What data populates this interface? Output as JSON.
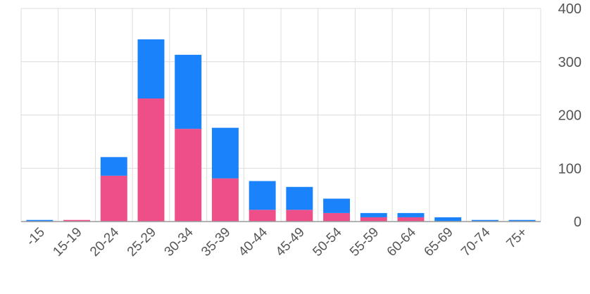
{
  "chart_data": {
    "type": "bar",
    "stacked": true,
    "categories": [
      "-15",
      "15-19",
      "20-24",
      "25-29",
      "30-34",
      "35-39",
      "40-44",
      "45-49",
      "50-54",
      "55-59",
      "60-64",
      "65-69",
      "70-74",
      "75+"
    ],
    "series": [
      {
        "color": "#ee4f88",
        "values": [
          0,
          3,
          86,
          231,
          174,
          81,
          22,
          22,
          16,
          8,
          8,
          0,
          0,
          0
        ]
      },
      {
        "color": "#1a82fb",
        "values": [
          3,
          0,
          35,
          111,
          139,
          95,
          54,
          43,
          27,
          8,
          8,
          8,
          3,
          3
        ]
      }
    ],
    "ylim": [
      0,
      400
    ],
    "yticks": [
      0,
      100,
      200,
      300,
      400
    ],
    "y_axis_side": "right",
    "grid": true,
    "legend": "none"
  }
}
